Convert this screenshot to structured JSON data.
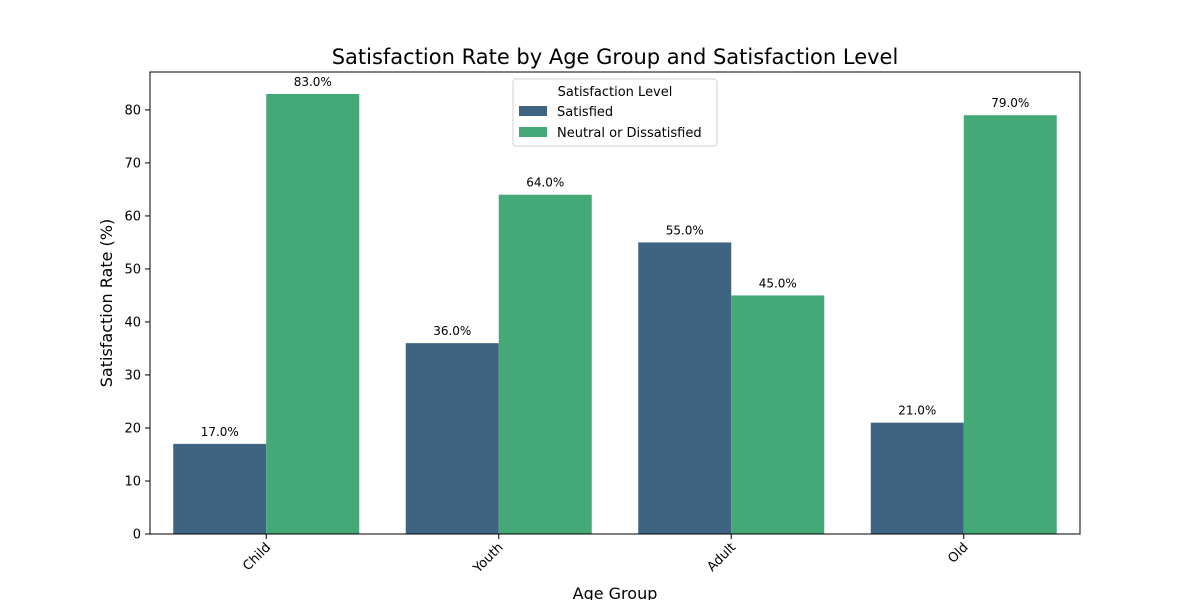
{
  "chart_data": {
    "type": "bar",
    "title": "Satisfaction Rate by Age Group and Satisfaction Level",
    "xlabel": "Age Group",
    "ylabel": "Satisfaction Rate (%)",
    "categories": [
      "Child",
      "Youth",
      "Adult",
      "Old"
    ],
    "series": [
      {
        "name": "Satisfied",
        "values": [
          17.0,
          36.0,
          55.0,
          21.0
        ],
        "labels": [
          "17.0%",
          "36.0%",
          "55.0%",
          "21.0%"
        ],
        "color": "#3e6482"
      },
      {
        "name": "Neutral or Dissatisfied",
        "values": [
          83.0,
          64.0,
          45.0,
          79.0
        ],
        "labels": [
          "83.0%",
          "64.0%",
          "45.0%",
          "79.0%"
        ],
        "color": "#45a877"
      }
    ],
    "ylim": [
      0,
      87.15
    ],
    "yticks": [
      0,
      10,
      20,
      30,
      40,
      50,
      60,
      70,
      80
    ],
    "ytick_labels": [
      "0",
      "10",
      "20",
      "30",
      "40",
      "50",
      "60",
      "70",
      "80"
    ],
    "xtick_rotation": 45,
    "grid": false,
    "legend": {
      "title": "Satisfaction Level",
      "placement": "top-center"
    }
  }
}
